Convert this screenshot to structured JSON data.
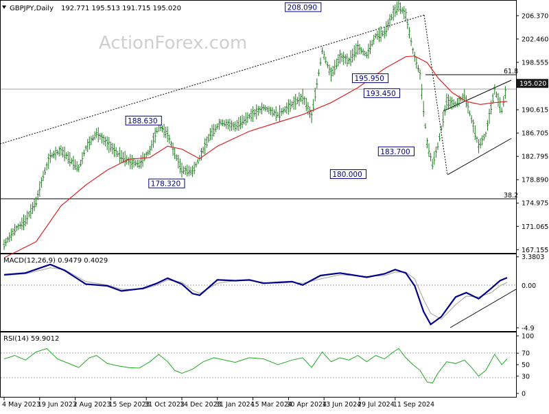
{
  "header": {
    "symbol": "GBPJPY,Daily",
    "ohlc": "192.771 195.513 191.715 195.020"
  },
  "watermark": "ActionForex.com",
  "colors": {
    "price": "#1f7a1f",
    "ma": "#dd2222",
    "macd": "#00008b",
    "signal": "#a0a0a0",
    "rsi": "#1faa1f",
    "callout": "#000080",
    "current_tag_bg": "#1a1a1a"
  },
  "chart_data": [
    {
      "type": "line",
      "panel": "price",
      "yaxis_ticks": [
        "206.370",
        "202.460",
        "198.555",
        "190.615",
        "186.705",
        "182.795",
        "178.890",
        "174.975",
        "171.065",
        "167.155"
      ],
      "ylim": [
        166.5,
        209.0
      ],
      "xaxis_ticks": [
        "4 May 2023",
        "19 Jun 2023",
        "2 Aug 2023",
        "15 Sep 2023",
        "31 Oct 2023",
        "14 Dec 2023",
        "31 Jan 2024",
        "15 Mar 2024",
        "30 Apr 2024",
        "13 Jun 2024",
        "29 Jul 2024",
        "11 Sep 2024"
      ],
      "current_price_label": "195.020",
      "current_price": 195.02,
      "callouts": [
        {
          "label": "208.090",
          "value": 208.09,
          "tick": 8.8
        },
        {
          "label": "188.630",
          "value": 188.63,
          "tick": 4.35
        },
        {
          "label": "178.320",
          "value": 178.32,
          "tick": 5.0
        },
        {
          "label": "195.950",
          "value": 195.95,
          "tick": 10.65
        },
        {
          "label": "193.450",
          "value": 193.45,
          "tick": 10.2
        },
        {
          "label": "183.700",
          "value": 183.7,
          "tick": 10.45
        },
        {
          "label": "180.000",
          "value": 180.0,
          "tick": 10.3
        }
      ],
      "fib_levels": [
        {
          "label": "61.8",
          "value": 197.5
        },
        {
          "label": "38.2",
          "value": 175.9
        }
      ],
      "price_points": [
        [
          0,
          168.0
        ],
        [
          0.3,
          170.5
        ],
        [
          0.6,
          172.0
        ],
        [
          0.9,
          175.2
        ],
        [
          1.1,
          179.5
        ],
        [
          1.3,
          182.8
        ],
        [
          1.6,
          183.8
        ],
        [
          1.9,
          182.0
        ],
        [
          2.1,
          180.8
        ],
        [
          2.3,
          184.2
        ],
        [
          2.6,
          186.7
        ],
        [
          2.9,
          185.0
        ],
        [
          3.2,
          183.2
        ],
        [
          3.5,
          182.0
        ],
        [
          3.8,
          181.5
        ],
        [
          4.1,
          183.8
        ],
        [
          4.35,
          188.0
        ],
        [
          4.6,
          186.5
        ],
        [
          4.75,
          184.0
        ],
        [
          5.0,
          180.5
        ],
        [
          5.3,
          180.3
        ],
        [
          5.5,
          182.5
        ],
        [
          5.8,
          186.5
        ],
        [
          6.1,
          188.5
        ],
        [
          6.5,
          187.8
        ],
        [
          6.9,
          189.5
        ],
        [
          7.3,
          191.0
        ],
        [
          7.7,
          189.8
        ],
        [
          8.1,
          191.5
        ],
        [
          8.4,
          192.8
        ],
        [
          8.65,
          189.5
        ],
        [
          8.95,
          200.5
        ],
        [
          9.2,
          196.5
        ],
        [
          9.45,
          199.5
        ],
        [
          9.7,
          198.8
        ],
        [
          9.95,
          201.0
        ],
        [
          10.2,
          199.8
        ],
        [
          10.45,
          203.0
        ],
        [
          10.7,
          203.5
        ],
        [
          10.95,
          206.8
        ],
        [
          11.1,
          208.0
        ],
        [
          11.3,
          206.5
        ],
        [
          11.5,
          200.5
        ],
        [
          11.7,
          196.5
        ],
        [
          11.9,
          185.0
        ],
        [
          12.05,
          181.5
        ],
        [
          12.2,
          184.5
        ],
        [
          12.45,
          192.0
        ],
        [
          12.7,
          191.5
        ],
        [
          12.95,
          193.0
        ],
        [
          13.15,
          189.0
        ],
        [
          13.35,
          184.5
        ],
        [
          13.55,
          186.5
        ],
        [
          13.8,
          194.0
        ],
        [
          14.0,
          190.5
        ],
        [
          14.15,
          195.0
        ]
      ],
      "ma_points": [
        [
          0,
          165.8
        ],
        [
          0.9,
          168.5
        ],
        [
          1.6,
          174.5
        ],
        [
          2.3,
          178.0
        ],
        [
          2.9,
          180.5
        ],
        [
          3.5,
          182.3
        ],
        [
          4.1,
          182.6
        ],
        [
          4.6,
          184.5
        ],
        [
          5.0,
          184.0
        ],
        [
          5.5,
          182.4
        ],
        [
          6.0,
          184.5
        ],
        [
          6.9,
          187.0
        ],
        [
          7.7,
          188.5
        ],
        [
          8.4,
          189.8
        ],
        [
          9.2,
          191.8
        ],
        [
          9.95,
          194.3
        ],
        [
          10.7,
          197.5
        ],
        [
          11.3,
          199.5
        ],
        [
          11.55,
          199.6
        ],
        [
          11.9,
          198.5
        ],
        [
          12.2,
          196.0
        ],
        [
          12.6,
          193.5
        ],
        [
          13.0,
          192.0
        ],
        [
          13.4,
          191.5
        ],
        [
          13.8,
          191.8
        ],
        [
          14.15,
          192.0
        ]
      ]
    },
    {
      "type": "line",
      "panel": "macd",
      "label": "MACD(12,26,9) 0.9479 0.4029",
      "yaxis_ticks": [
        "3.3803",
        "0.00",
        "-4.9"
      ],
      "zero_tag": "0.00",
      "ylim": [
        -5.2,
        3.6
      ],
      "macd_points": [
        [
          0,
          1.3
        ],
        [
          0.6,
          1.5
        ],
        [
          1.3,
          2.5
        ],
        [
          1.7,
          1.8
        ],
        [
          2.3,
          0.2
        ],
        [
          2.9,
          0.0
        ],
        [
          3.3,
          -0.6
        ],
        [
          3.9,
          -0.3
        ],
        [
          4.3,
          0.3
        ],
        [
          4.6,
          0.9
        ],
        [
          5.0,
          0.2
        ],
        [
          5.3,
          -0.9
        ],
        [
          5.5,
          -1.1
        ],
        [
          6.0,
          0.7
        ],
        [
          6.5,
          0.6
        ],
        [
          6.9,
          0.7
        ],
        [
          7.3,
          0.3
        ],
        [
          7.7,
          0.4
        ],
        [
          8.1,
          0.5
        ],
        [
          8.4,
          0.1
        ],
        [
          8.9,
          1.2
        ],
        [
          9.45,
          1.5
        ],
        [
          10.2,
          1.0
        ],
        [
          10.7,
          1.4
        ],
        [
          11.0,
          1.9
        ],
        [
          11.3,
          1.5
        ],
        [
          11.55,
          0.0
        ],
        [
          11.8,
          -3.0
        ],
        [
          12.0,
          -4.5
        ],
        [
          12.3,
          -3.6
        ],
        [
          12.7,
          -1.3
        ],
        [
          13.0,
          -0.8
        ],
        [
          13.35,
          -1.5
        ],
        [
          13.7,
          -0.3
        ],
        [
          13.95,
          0.6
        ],
        [
          14.15,
          0.95
        ]
      ],
      "signal_points": [
        [
          0,
          1.2
        ],
        [
          0.6,
          1.4
        ],
        [
          1.3,
          2.1
        ],
        [
          1.7,
          1.9
        ],
        [
          2.3,
          0.5
        ],
        [
          2.9,
          0.1
        ],
        [
          3.3,
          -0.4
        ],
        [
          3.9,
          -0.4
        ],
        [
          4.3,
          0.1
        ],
        [
          4.6,
          0.7
        ],
        [
          5.0,
          0.4
        ],
        [
          5.3,
          -0.5
        ],
        [
          5.5,
          -0.9
        ],
        [
          6.0,
          0.3
        ],
        [
          6.5,
          0.6
        ],
        [
          6.9,
          0.6
        ],
        [
          7.3,
          0.4
        ],
        [
          7.7,
          0.3
        ],
        [
          8.1,
          0.4
        ],
        [
          8.4,
          0.3
        ],
        [
          8.9,
          0.8
        ],
        [
          9.45,
          1.3
        ],
        [
          10.2,
          1.1
        ],
        [
          10.7,
          1.2
        ],
        [
          11.0,
          1.6
        ],
        [
          11.3,
          1.6
        ],
        [
          11.55,
          0.8
        ],
        [
          11.8,
          -1.6
        ],
        [
          12.0,
          -3.2
        ],
        [
          12.3,
          -3.9
        ],
        [
          12.7,
          -2.2
        ],
        [
          13.0,
          -1.2
        ],
        [
          13.35,
          -1.3
        ],
        [
          13.7,
          -0.8
        ],
        [
          13.95,
          0.0
        ],
        [
          14.15,
          0.4
        ]
      ]
    },
    {
      "type": "line",
      "panel": "rsi",
      "label": "RSI(14) 59.9012",
      "yaxis_ticks": [
        "100",
        "70",
        "50",
        "30",
        "0"
      ],
      "ylim": [
        0,
        100
      ],
      "rsi_points": [
        [
          0,
          60
        ],
        [
          0.3,
          66
        ],
        [
          0.6,
          58
        ],
        [
          0.9,
          72
        ],
        [
          1.2,
          78
        ],
        [
          1.5,
          60
        ],
        [
          1.9,
          50
        ],
        [
          2.1,
          45
        ],
        [
          2.4,
          62
        ],
        [
          2.6,
          66
        ],
        [
          2.9,
          52
        ],
        [
          3.2,
          48
        ],
        [
          3.5,
          45
        ],
        [
          3.8,
          44
        ],
        [
          4.1,
          55
        ],
        [
          4.35,
          68
        ],
        [
          4.6,
          55
        ],
        [
          4.8,
          40
        ],
        [
          5.0,
          35
        ],
        [
          5.3,
          42
        ],
        [
          5.6,
          55
        ],
        [
          5.9,
          62
        ],
        [
          6.2,
          58
        ],
        [
          6.5,
          54
        ],
        [
          6.9,
          62
        ],
        [
          7.3,
          60
        ],
        [
          7.7,
          50
        ],
        [
          8.1,
          58
        ],
        [
          8.4,
          62
        ],
        [
          8.65,
          45
        ],
        [
          8.95,
          72
        ],
        [
          9.2,
          55
        ],
        [
          9.45,
          62
        ],
        [
          9.7,
          58
        ],
        [
          9.95,
          66
        ],
        [
          10.2,
          55
        ],
        [
          10.45,
          66
        ],
        [
          10.7,
          60
        ],
        [
          10.95,
          72
        ],
        [
          11.1,
          78
        ],
        [
          11.3,
          62
        ],
        [
          11.5,
          50
        ],
        [
          11.7,
          40
        ],
        [
          11.9,
          20
        ],
        [
          12.05,
          18
        ],
        [
          12.2,
          35
        ],
        [
          12.45,
          55
        ],
        [
          12.7,
          52
        ],
        [
          12.95,
          58
        ],
        [
          13.15,
          45
        ],
        [
          13.35,
          30
        ],
        [
          13.55,
          40
        ],
        [
          13.8,
          68
        ],
        [
          14.0,
          50
        ],
        [
          14.15,
          60
        ]
      ]
    }
  ]
}
